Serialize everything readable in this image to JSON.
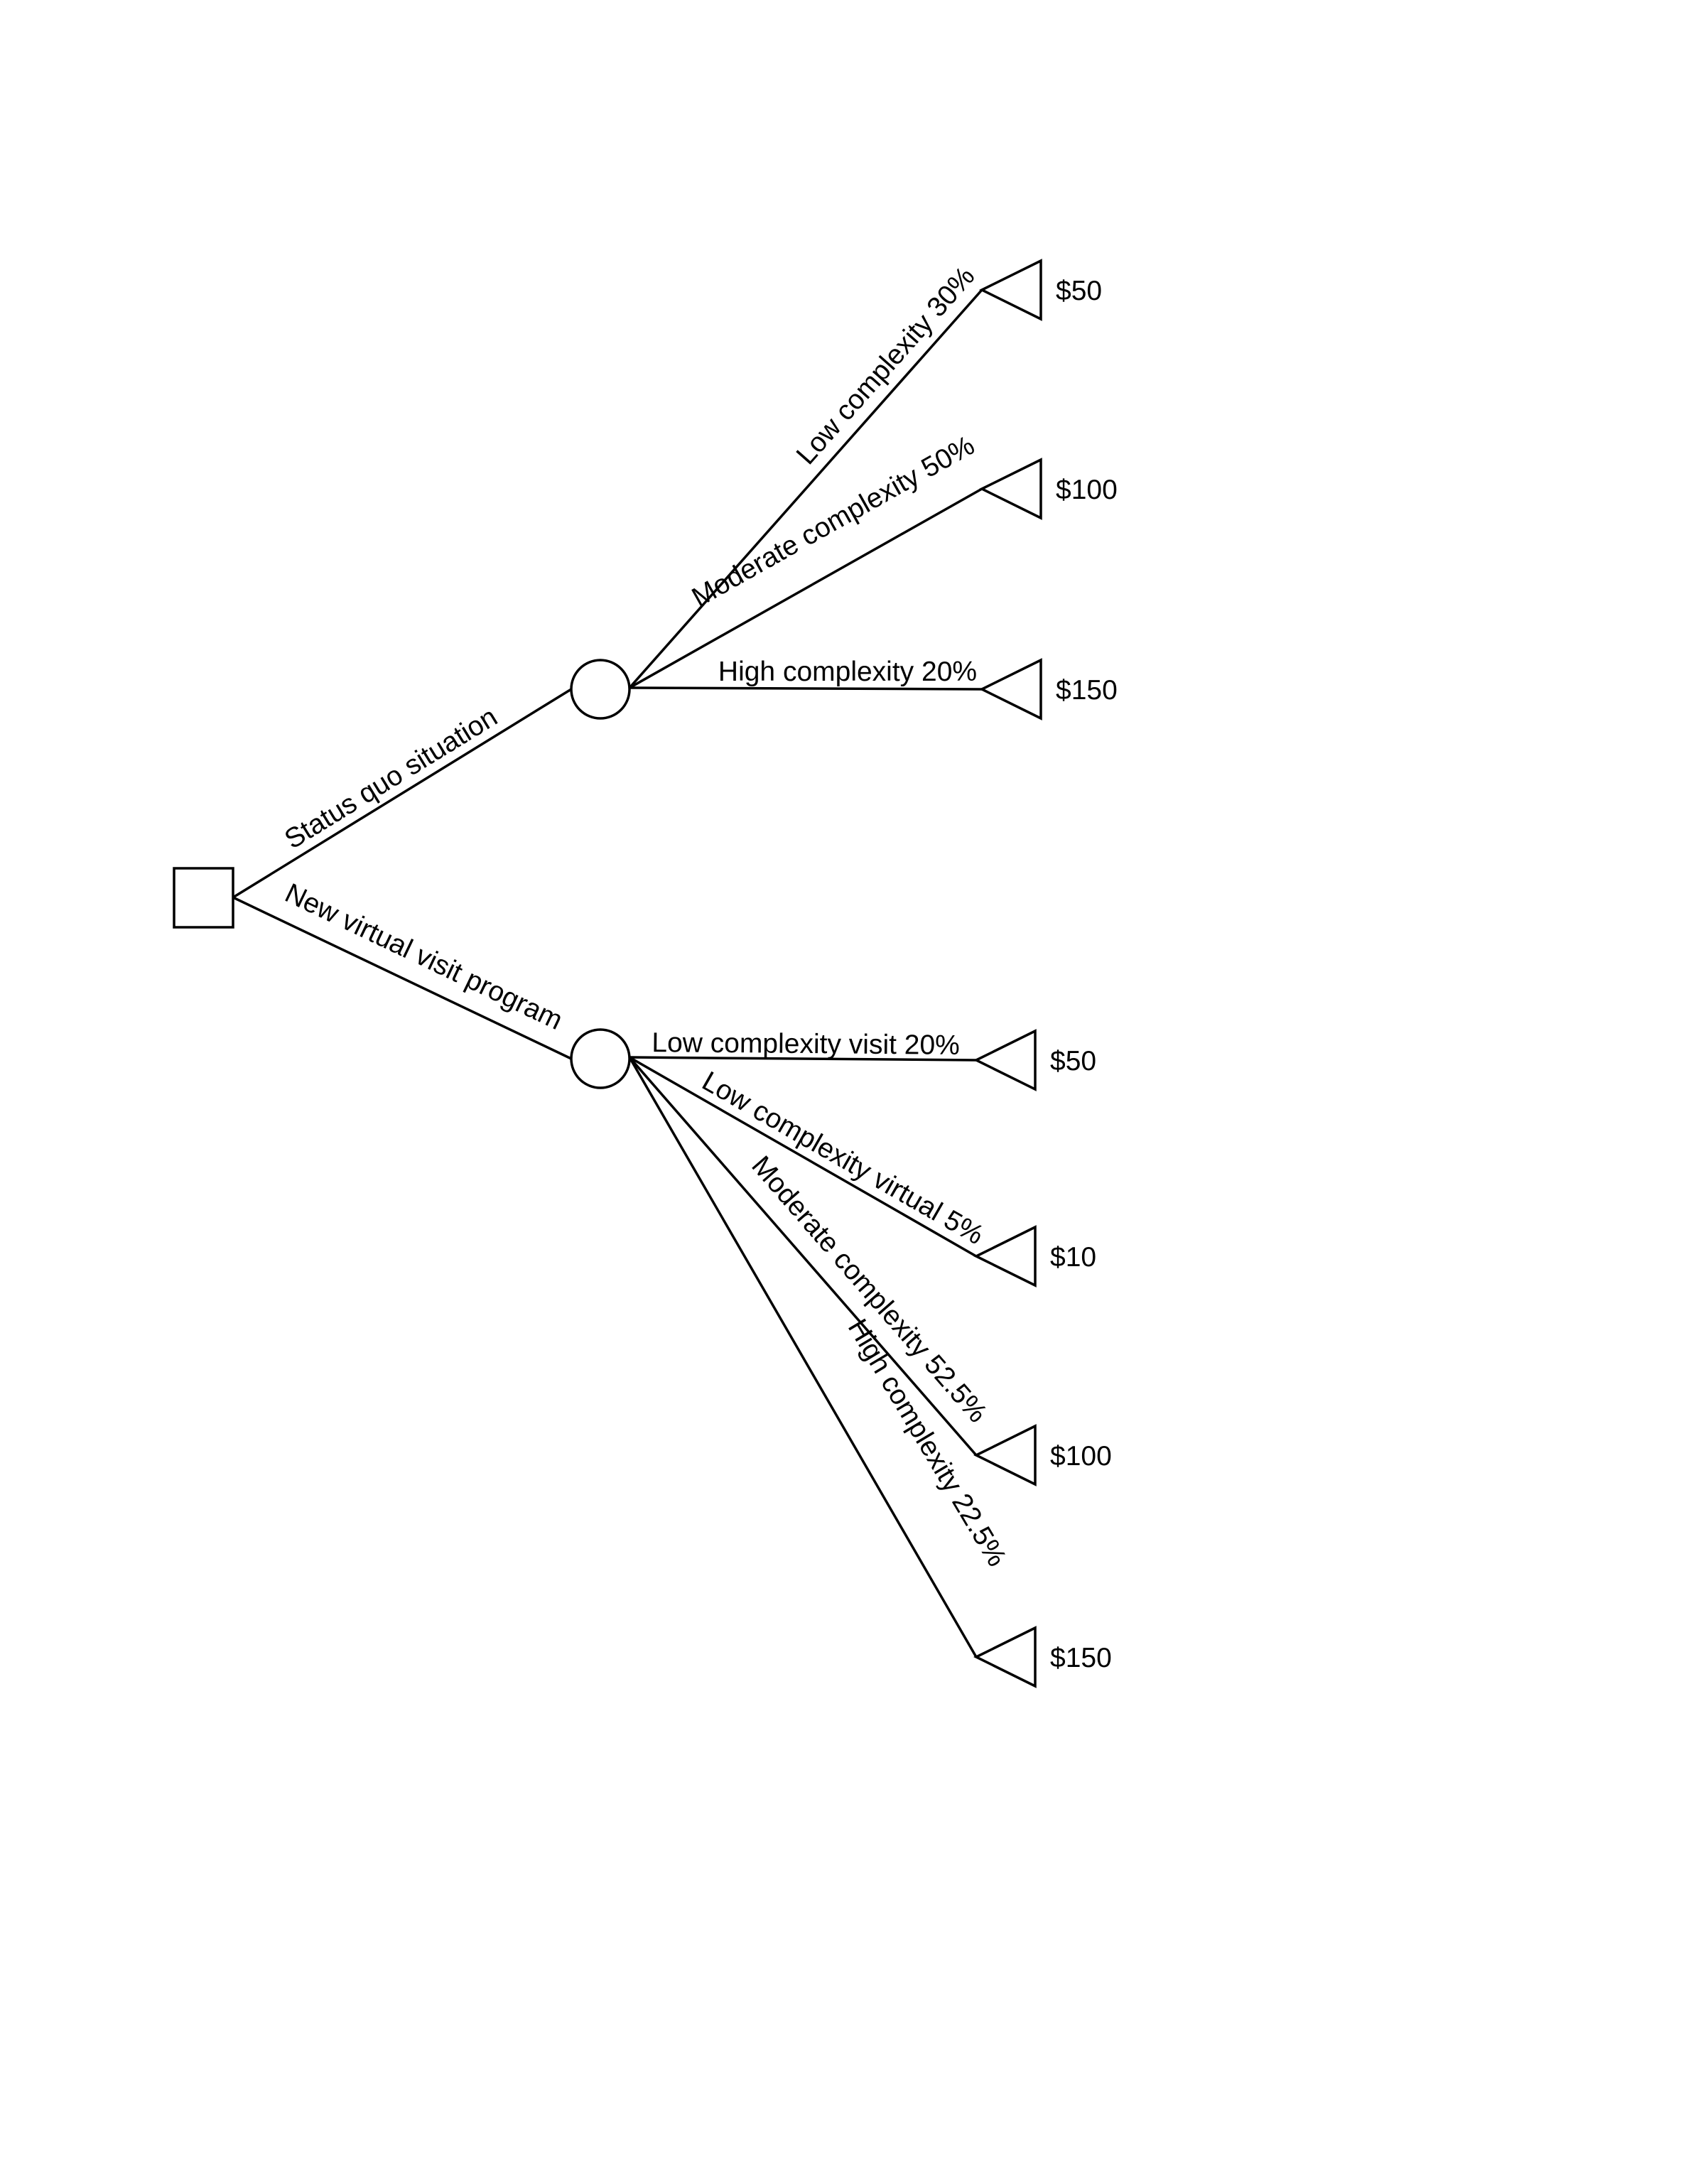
{
  "tree": {
    "decision": {
      "branches": [
        {
          "label": "Status quo situation",
          "outcomes": [
            {
              "label": "Low complexity 30%",
              "payoff": "$50"
            },
            {
              "label": "Moderate complexity 50%",
              "payoff": "$100"
            },
            {
              "label": "High complexity 20%",
              "payoff": "$150"
            }
          ]
        },
        {
          "label": "New virtual visit program",
          "outcomes": [
            {
              "label": "Low complexity visit 20%",
              "payoff": "$50"
            },
            {
              "label": "Low complexity virtual 5%",
              "payoff": "$10"
            },
            {
              "label": "Moderate complexity 52.5%",
              "payoff": "$100"
            },
            {
              "label": "High complexity 22.5%",
              "payoff": "$150"
            }
          ]
        }
      ]
    }
  }
}
